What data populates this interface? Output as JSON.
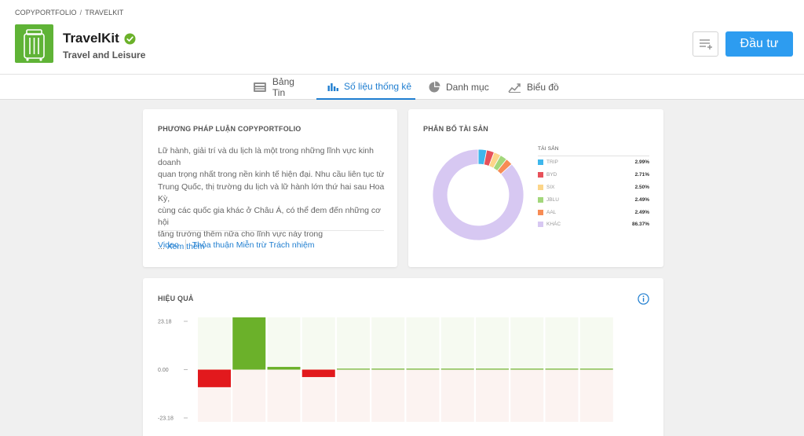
{
  "breadcrumb": {
    "root": "COPYPORTFOLIO",
    "separator": "/",
    "current": "TRAVELKIT"
  },
  "portfolio": {
    "name": "TravelKit",
    "category": "Travel and Leisure",
    "logo_icon": "suitcase-icon",
    "verified_icon": "verified-check-icon"
  },
  "actions": {
    "invest_label": "Đầu tư",
    "watch_icon": "add-to-watchlist-icon"
  },
  "tabs": [
    {
      "label": "Bảng Tin",
      "icon": "news-feed-icon",
      "active": false
    },
    {
      "label": "Số liệu thống kê",
      "icon": "bar-stats-icon",
      "active": true
    },
    {
      "label": "Danh mục",
      "icon": "pie-portfolio-icon",
      "active": false
    },
    {
      "label": "Biểu đồ",
      "icon": "line-chart-icon",
      "active": false
    }
  ],
  "methodology": {
    "title": "PHƯƠNG PHÁP LUẬN COPYPORTFOLIO",
    "lines": [
      "Lữ hành, giải trí và du lịch là một trong những lĩnh vực kinh doanh",
      "quan trọng nhất trong nền kinh tế hiện đại. Nhu cầu liên tục từ",
      "Trung Quốc, thị trường du lịch và lữ hành lớn thứ hai sau Hoa Kỳ,",
      "cùng các quốc gia khác ở Châu Á, có thể đem đến những cơ hội",
      "tăng trưởng thêm nữa cho lĩnh vực này trong"
    ],
    "more_prefix": "... ",
    "more_label": "Xem thêm",
    "video_link": "Video",
    "disclaimer_link": "Thỏa thuận Miễn trừ Trách nhiệm"
  },
  "allocation": {
    "title": "PHÂN BỐ TÀI SẢN",
    "legend_header": "TÀI SẢN",
    "chart_data": {
      "type": "pie",
      "labels": [
        "TRIP",
        "BYD",
        "SIX",
        "JBLU",
        "AAL",
        "KHÁC"
      ],
      "display_values": [
        "2.99%",
        "2.71%",
        "2.50%",
        "2.49%",
        "2.49%",
        "86.37%"
      ],
      "values": [
        2.99,
        2.71,
        2.5,
        2.49,
        2.49,
        86.37
      ],
      "colors": [
        "#3fb7ec",
        "#e7515a",
        "#fcd589",
        "#a3d77b",
        "#f78c55",
        "#d7c8f2"
      ]
    }
  },
  "performance": {
    "title": "HIỆU QUẢ",
    "info_icon": "info-icon",
    "chart_data": {
      "type": "bar",
      "y_tick_labels": [
        "23.18",
        "0.00",
        "-23.18"
      ],
      "ylim": [
        -23.18,
        23.18
      ],
      "values": [
        -7.8,
        23.18,
        1.2,
        -3.3,
        0.3,
        0.3,
        0.3,
        0.3,
        0.3,
        0.3,
        0.3,
        0.3
      ],
      "colors": {
        "positive": "#6bb12a",
        "negative": "#e2191d",
        "positive_bg": "#f6faf1",
        "negative_bg": "#fcf3f1"
      }
    }
  }
}
